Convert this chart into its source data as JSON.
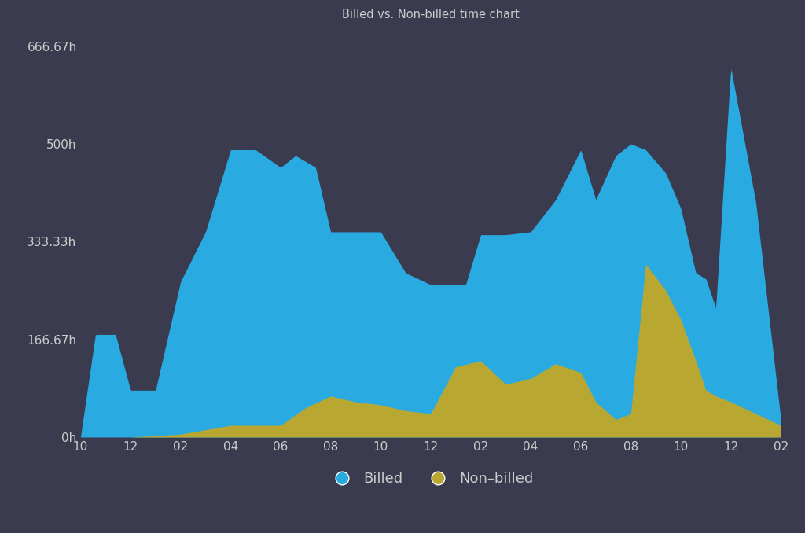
{
  "title": "Billed vs. Non-billed time chart",
  "background_color": "#3b3b4f",
  "plot_background_color": "#3b3b4f",
  "title_color": "#cccccc",
  "tick_color": "#cccccc",
  "ylabel_ticks": [
    "0h",
    "166.67h",
    "333.33h",
    "500h",
    "666.67h"
  ],
  "ylabel_values": [
    0,
    166.67,
    333.33,
    500,
    666.67
  ],
  "ylim": [
    0,
    700
  ],
  "x_labels": [
    "10",
    "12",
    "02",
    "04",
    "06",
    "08",
    "10",
    "12",
    "02",
    "04",
    "06",
    "08",
    "10",
    "12",
    "02"
  ],
  "billed_color": "#29abe2",
  "nonbilled_color": "#b8a832",
  "legend_billed": "Billed",
  "legend_nonbilled": "Non–billed",
  "billed_x": [
    0,
    0.3,
    0.7,
    1.0,
    1.5,
    2.0,
    2.5,
    3.0,
    3.5,
    4.0,
    4.3,
    4.7,
    5.0,
    5.3,
    5.7,
    6.0,
    6.5,
    7.0,
    7.3,
    7.7,
    8.0,
    8.5,
    9.0,
    9.5,
    10.0,
    10.3,
    10.7,
    11.0,
    11.3,
    11.7,
    12.0,
    12.3,
    12.5,
    12.7,
    13.0,
    13.5,
    14.0
  ],
  "billed_y": [
    0,
    175,
    175,
    80,
    80,
    265,
    350,
    490,
    490,
    460,
    480,
    460,
    350,
    350,
    350,
    350,
    280,
    260,
    260,
    260,
    345,
    345,
    350,
    405,
    490,
    405,
    480,
    500,
    490,
    450,
    390,
    280,
    270,
    220,
    630,
    400,
    30
  ],
  "nonbilled_x": [
    0,
    1.0,
    2.0,
    3.0,
    4.0,
    4.5,
    5.0,
    5.5,
    6.0,
    6.5,
    7.0,
    7.5,
    8.0,
    8.5,
    9.0,
    9.5,
    10.0,
    10.3,
    10.7,
    11.0,
    11.3,
    11.7,
    12.0,
    12.3,
    12.5,
    12.7,
    13.0,
    13.5,
    14.0
  ],
  "nonbilled_y": [
    0,
    0,
    5,
    20,
    20,
    50,
    70,
    60,
    55,
    45,
    40,
    120,
    130,
    90,
    100,
    125,
    110,
    60,
    30,
    40,
    295,
    250,
    200,
    130,
    80,
    70,
    60,
    40,
    20
  ]
}
